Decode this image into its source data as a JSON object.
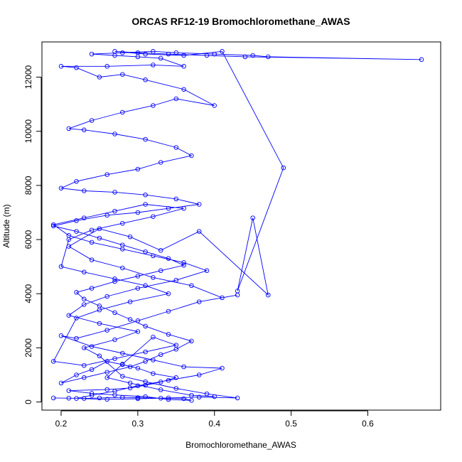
{
  "chart_data": {
    "type": "line",
    "title": "ORCAS RF12-19 Bromochloromethane_AWAS",
    "xlabel": "Bromochloromethane_AWAS",
    "ylabel": "Altitude (m)",
    "xlim": [
      0.175,
      0.695
    ],
    "ylim": [
      -300,
      13300
    ],
    "xticks": [
      0.2,
      0.3,
      0.4,
      0.5,
      0.6
    ],
    "xtick_labels": [
      "0.2",
      "0.3",
      "0.4",
      "0.5",
      "0.6"
    ],
    "yticks": [
      0,
      2000,
      4000,
      6000,
      8000,
      10000,
      12000
    ],
    "ytick_labels": [
      "0",
      "2000",
      "4000",
      "6000",
      "8000",
      "10000",
      "12000"
    ],
    "grid": false,
    "legend": "none",
    "series_color": "#0000ff",
    "points": [
      [
        0.19,
        150
      ],
      [
        0.21,
        140
      ],
      [
        0.23,
        130
      ],
      [
        0.25,
        150
      ],
      [
        0.28,
        170
      ],
      [
        0.3,
        160
      ],
      [
        0.33,
        140
      ],
      [
        0.36,
        120
      ],
      [
        0.37,
        60
      ],
      [
        0.34,
        90
      ],
      [
        0.31,
        200
      ],
      [
        0.27,
        260
      ],
      [
        0.24,
        320
      ],
      [
        0.21,
        420
      ],
      [
        0.26,
        460
      ],
      [
        0.29,
        520
      ],
      [
        0.31,
        620
      ],
      [
        0.33,
        740
      ],
      [
        0.35,
        900
      ],
      [
        0.32,
        1050
      ],
      [
        0.3,
        1250
      ],
      [
        0.28,
        1380
      ],
      [
        0.26,
        1500
      ],
      [
        0.24,
        1200
      ],
      [
        0.22,
        1000
      ],
      [
        0.2,
        700
      ],
      [
        0.23,
        900
      ],
      [
        0.26,
        1100
      ],
      [
        0.29,
        1300
      ],
      [
        0.31,
        1500
      ],
      [
        0.33,
        1750
      ],
      [
        0.35,
        1950
      ],
      [
        0.37,
        2250
      ],
      [
        0.34,
        2500
      ],
      [
        0.31,
        2800
      ],
      [
        0.29,
        3050
      ],
      [
        0.27,
        3300
      ],
      [
        0.25,
        3550
      ],
      [
        0.23,
        3800
      ],
      [
        0.22,
        4050
      ],
      [
        0.24,
        4200
      ],
      [
        0.27,
        4450
      ],
      [
        0.3,
        4650
      ],
      [
        0.33,
        4850
      ],
      [
        0.36,
        5050
      ],
      [
        0.34,
        5300
      ],
      [
        0.31,
        5550
      ],
      [
        0.28,
        5800
      ],
      [
        0.25,
        6050
      ],
      [
        0.22,
        6300
      ],
      [
        0.19,
        6500
      ],
      [
        0.22,
        6700
      ],
      [
        0.26,
        6900
      ],
      [
        0.3,
        7000
      ],
      [
        0.34,
        7150
      ],
      [
        0.38,
        7300
      ],
      [
        0.35,
        7500
      ],
      [
        0.31,
        7650
      ],
      [
        0.27,
        7750
      ],
      [
        0.23,
        7800
      ],
      [
        0.2,
        7900
      ],
      [
        0.22,
        8150
      ],
      [
        0.26,
        8400
      ],
      [
        0.3,
        8600
      ],
      [
        0.33,
        8850
      ],
      [
        0.37,
        9100
      ],
      [
        0.35,
        9400
      ],
      [
        0.31,
        9700
      ],
      [
        0.27,
        9900
      ],
      [
        0.23,
        10050
      ],
      [
        0.21,
        10100
      ],
      [
        0.24,
        10400
      ],
      [
        0.28,
        10700
      ],
      [
        0.32,
        10950
      ],
      [
        0.35,
        11200
      ],
      [
        0.4,
        10950
      ],
      [
        0.36,
        11550
      ],
      [
        0.31,
        11900
      ],
      [
        0.28,
        12100
      ],
      [
        0.25,
        12000
      ],
      [
        0.22,
        12350
      ],
      [
        0.2,
        12400
      ],
      [
        0.26,
        12400
      ],
      [
        0.32,
        12450
      ],
      [
        0.36,
        12400
      ],
      [
        0.33,
        12700
      ],
      [
        0.3,
        12750
      ],
      [
        0.27,
        12800
      ],
      [
        0.24,
        12850
      ],
      [
        0.28,
        12900
      ],
      [
        0.32,
        12950
      ],
      [
        0.35,
        12900
      ],
      [
        0.4,
        12850
      ],
      [
        0.45,
        12800
      ],
      [
        0.47,
        12750
      ],
      [
        0.67,
        12650
      ],
      [
        0.44,
        12750
      ],
      [
        0.39,
        12800
      ],
      [
        0.34,
        12850
      ],
      [
        0.3,
        12900
      ],
      [
        0.27,
        12950
      ],
      [
        0.31,
        12850
      ],
      [
        0.36,
        12800
      ],
      [
        0.41,
        12950
      ],
      [
        0.49,
        8650
      ],
      [
        0.43,
        4100
      ],
      [
        0.45,
        6800
      ],
      [
        0.47,
        3950
      ],
      [
        0.38,
        6300
      ],
      [
        0.33,
        5600
      ],
      [
        0.29,
        6100
      ],
      [
        0.25,
        6400
      ],
      [
        0.21,
        5750
      ],
      [
        0.24,
        5250
      ],
      [
        0.28,
        4950
      ],
      [
        0.32,
        4600
      ],
      [
        0.37,
        4300
      ],
      [
        0.41,
        3850
      ],
      [
        0.43,
        3950
      ],
      [
        0.38,
        3700
      ],
      [
        0.34,
        3350
      ],
      [
        0.3,
        3000
      ],
      [
        0.26,
        2650
      ],
      [
        0.22,
        2350
      ],
      [
        0.2,
        2450
      ],
      [
        0.24,
        2050
      ],
      [
        0.28,
        1800
      ],
      [
        0.32,
        1550
      ],
      [
        0.36,
        1300
      ],
      [
        0.41,
        1250
      ],
      [
        0.38,
        1000
      ],
      [
        0.34,
        800
      ],
      [
        0.3,
        600
      ],
      [
        0.27,
        400
      ],
      [
        0.24,
        250
      ],
      [
        0.22,
        130
      ],
      [
        0.26,
        100
      ],
      [
        0.3,
        120
      ],
      [
        0.34,
        150
      ],
      [
        0.38,
        180
      ],
      [
        0.43,
        150
      ],
      [
        0.39,
        300
      ],
      [
        0.35,
        500
      ],
      [
        0.31,
        750
      ],
      [
        0.28,
        950
      ],
      [
        0.25,
        1700
      ],
      [
        0.23,
        2000
      ],
      [
        0.27,
        2300
      ],
      [
        0.3,
        2600
      ],
      [
        0.25,
        2900
      ],
      [
        0.21,
        3200
      ],
      [
        0.23,
        3600
      ],
      [
        0.26,
        3900
      ],
      [
        0.3,
        4200
      ],
      [
        0.35,
        4500
      ],
      [
        0.39,
        4850
      ],
      [
        0.36,
        5150
      ],
      [
        0.32,
        5400
      ],
      [
        0.28,
        5650
      ],
      [
        0.24,
        5900
      ],
      [
        0.21,
        6150
      ],
      [
        0.19,
        6550
      ],
      [
        0.23,
        6800
      ],
      [
        0.27,
        7050
      ],
      [
        0.31,
        7300
      ],
      [
        0.36,
        7150
      ],
      [
        0.32,
        6850
      ],
      [
        0.28,
        6600
      ],
      [
        0.24,
        6350
      ],
      [
        0.21,
        6000
      ],
      [
        0.2,
        5000
      ],
      [
        0.23,
        4800
      ],
      [
        0.27,
        4550
      ],
      [
        0.31,
        4300
      ],
      [
        0.34,
        4000
      ],
      [
        0.29,
        3700
      ],
      [
        0.25,
        3400
      ],
      [
        0.22,
        3100
      ],
      [
        0.19,
        1500
      ],
      [
        0.23,
        1350
      ],
      [
        0.27,
        1600
      ],
      [
        0.31,
        1850
      ],
      [
        0.35,
        2100
      ],
      [
        0.32,
        2400
      ],
      [
        0.28,
        1400
      ],
      [
        0.26,
        900
      ],
      [
        0.29,
        700
      ],
      [
        0.33,
        450
      ],
      [
        0.37,
        250
      ],
      [
        0.4,
        200
      ]
    ]
  }
}
